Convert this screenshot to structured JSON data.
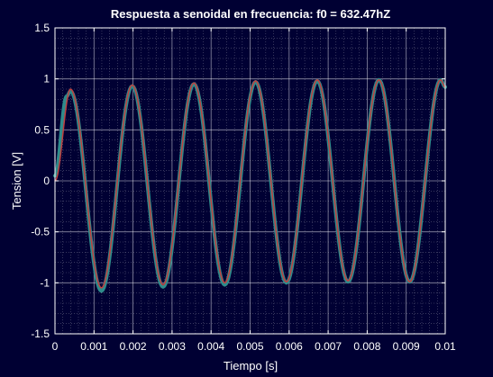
{
  "chart_data": {
    "type": "line",
    "title": "Respuesta a senoidal en frecuencia: f0 = 632.47hZ",
    "xlabel": "Tiempo [s]",
    "ylabel": "Tension [V]",
    "xlim": [
      0,
      0.01
    ],
    "ylim": [
      -1.5,
      1.5
    ],
    "xticks": [
      0,
      0.001,
      0.002,
      0.003,
      0.004,
      0.005,
      0.006,
      0.007,
      0.008,
      0.009,
      0.01
    ],
    "xtick_labels": [
      "0",
      "0.001",
      "0.002",
      "0.003",
      "0.004",
      "0.005",
      "0.006",
      "0.007",
      "0.008",
      "0.009",
      "0.01"
    ],
    "yticks": [
      -1.5,
      -1,
      -0.5,
      0,
      0.5,
      1,
      1.5
    ],
    "ytick_labels": [
      "-1.5",
      "-1",
      "-0.5",
      "0",
      "0.5",
      "1",
      "1.5"
    ],
    "grid": true,
    "minor_grid": true,
    "frequency_hz": 632.47,
    "series": [
      {
        "color": "#2e8b8b",
        "line": "thick",
        "points": [
          [
            0,
            0.05
          ],
          [
            0.0003,
            0.83
          ],
          [
            0.0004,
            0.88
          ],
          [
            0.00119,
            -1.08
          ],
          [
            0.00198,
            0.93
          ],
          [
            0.00277,
            -1.04
          ],
          [
            0.00356,
            0.95
          ],
          [
            0.00435,
            -1.02
          ],
          [
            0.00514,
            0.97
          ],
          [
            0.00593,
            -1.0
          ],
          [
            0.00672,
            0.98
          ],
          [
            0.00751,
            -0.99
          ],
          [
            0.0083,
            0.99
          ],
          [
            0.00909,
            -0.99
          ],
          [
            0.00988,
            0.99
          ],
          [
            0.01,
            0.92
          ]
        ]
      },
      {
        "color": "#c04040",
        "line": "thin",
        "points": [
          [
            0,
            0.0
          ],
          [
            0.0004,
            0.9
          ],
          [
            0.00119,
            -1.05
          ],
          [
            0.00198,
            0.94
          ],
          [
            0.00277,
            -1.02
          ],
          [
            0.00356,
            0.96
          ],
          [
            0.00435,
            -1.0
          ],
          [
            0.00514,
            0.98
          ],
          [
            0.00593,
            -0.99
          ],
          [
            0.00672,
            0.99
          ],
          [
            0.00751,
            -0.98
          ],
          [
            0.0083,
            0.99
          ],
          [
            0.00909,
            -0.99
          ],
          [
            0.00988,
            0.99
          ],
          [
            0.01,
            0.92
          ]
        ]
      }
    ]
  },
  "colors": {
    "background": "#000033",
    "axes_background": "#000033",
    "grid": "#ffffff",
    "text": "#ffffff",
    "response": "#2e8b8b",
    "input": "#c04040"
  }
}
